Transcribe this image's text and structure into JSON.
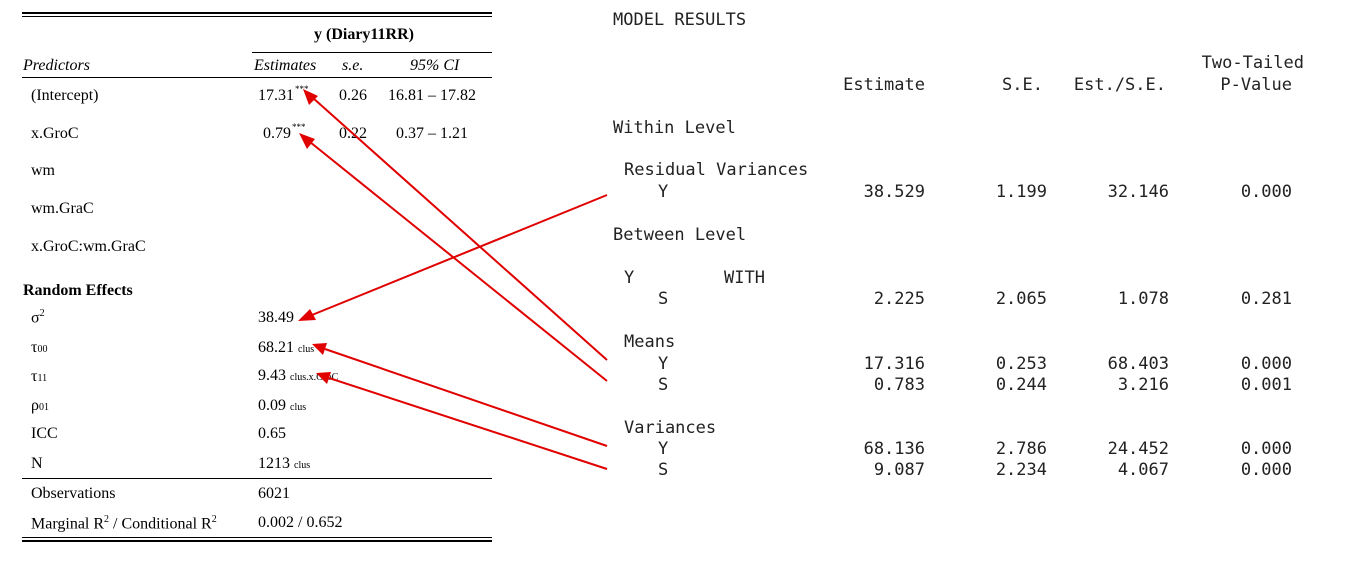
{
  "regression_table": {
    "dv_header": "y (Diary11RR)",
    "col_predictors": "Predictors",
    "col_estimates": "Estimates",
    "col_se": "s.e.",
    "col_ci": "95% CI",
    "fixed_rows": [
      {
        "label": "(Intercept)",
        "estimate": "17.31",
        "stars": "***",
        "se": "0.26",
        "ci": "16.81 – 17.82"
      },
      {
        "label": "x.GroC",
        "estimate": "0.79",
        "stars": "***",
        "se": "0.22",
        "ci": "0.37 – 1.21"
      },
      {
        "label": "wm",
        "estimate": "",
        "stars": "",
        "se": "",
        "ci": ""
      },
      {
        "label": "wm.GraC",
        "estimate": "",
        "stars": "",
        "se": "",
        "ci": ""
      },
      {
        "label": "x.GroC:wm.GraC",
        "estimate": "",
        "stars": "",
        "se": "",
        "ci": ""
      }
    ],
    "random_effects_header": "Random Effects",
    "random_rows": [
      {
        "label": "σ",
        "label_sup": "2",
        "label_sub": "",
        "value": "38.49",
        "value_sub": ""
      },
      {
        "label": "τ",
        "label_sup": "",
        "label_sub": "00",
        "value": "68.21",
        "value_sub": "clus"
      },
      {
        "label": "τ",
        "label_sup": "",
        "label_sub": "11",
        "value": "9.43",
        "value_sub": "clus.x.GroC"
      },
      {
        "label": "ρ",
        "label_sup": "",
        "label_sub": "01",
        "value": "0.09",
        "value_sub": "clus"
      },
      {
        "label": "ICC",
        "label_sup": "",
        "label_sub": "",
        "value": "0.65",
        "value_sub": ""
      },
      {
        "label": "N",
        "label_sup": "",
        "label_sub": "",
        "value": "1213",
        "value_sub": "clus"
      }
    ],
    "observations_label": "Observations",
    "observations_value": "6021",
    "r2_label_a": "Marginal R",
    "r2_sup_a": "2",
    "r2_label_b": " / Conditional R",
    "r2_sup_b": "2",
    "r2_value": "0.002 / 0.652"
  },
  "model_results": {
    "title": "MODEL RESULTS",
    "header": {
      "estimate": "Estimate",
      "se": "S.E.",
      "est_se": "Est./S.E.",
      "pvalue_line1": "Two-Tailed",
      "pvalue_line2": "P-Value"
    },
    "within_level": "Within Level",
    "residual_variances": "Residual Variances",
    "rv_y": {
      "label": "Y",
      "estimate": "38.529",
      "se": "1.199",
      "est_se": "32.146",
      "p": "0.000"
    },
    "between_level": "Between Level",
    "y_with_label": "Y",
    "with_keyword": "WITH",
    "with_s": {
      "label": "S",
      "estimate": "2.225",
      "se": "2.065",
      "est_se": "1.078",
      "p": "0.281"
    },
    "means": "Means",
    "means_y": {
      "label": "Y",
      "estimate": "17.316",
      "se": "0.253",
      "est_se": "68.403",
      "p": "0.000"
    },
    "means_s": {
      "label": "S",
      "estimate": "0.783",
      "se": "0.244",
      "est_se": "3.216",
      "p": "0.001"
    },
    "variances": "Variances",
    "var_y": {
      "label": "Y",
      "estimate": "68.136",
      "se": "2.786",
      "est_se": "24.452",
      "p": "0.000"
    },
    "var_s": {
      "label": "S",
      "estimate": "9.087",
      "se": "2.234",
      "est_se": "4.067",
      "p": "0.000"
    }
  },
  "annotation_color": "#e00000"
}
